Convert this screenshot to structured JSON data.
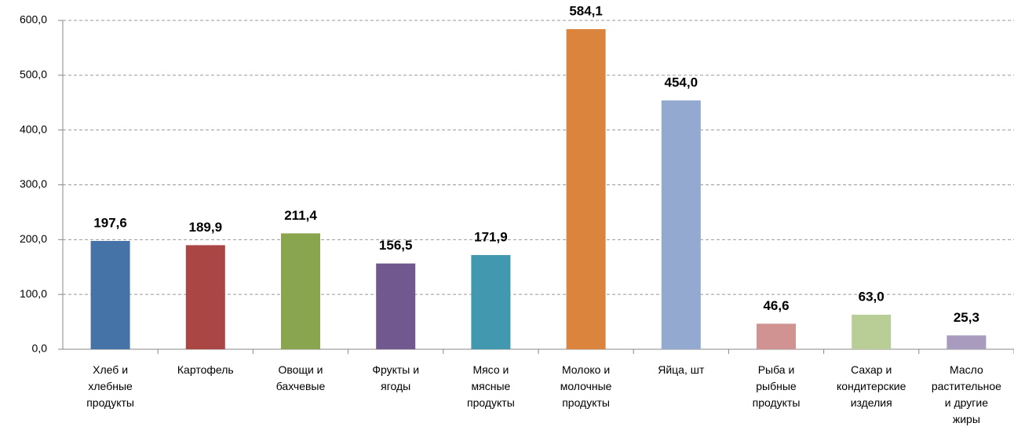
{
  "chart_data": {
    "type": "bar",
    "categories": [
      "Хлеб и хлебные продукты",
      "Картофель",
      "Овощи и бахчевые",
      "Фрукты и ягоды",
      "Мясо и мясные продукты",
      "Молоко и молочные продукты",
      "Яйца, шт",
      "Рыба и рыбные продукты",
      "Сахар и кондитерские изделия",
      "Масло растительное и другие жиры"
    ],
    "values": [
      197.6,
      189.9,
      211.4,
      156.5,
      171.9,
      584.1,
      454.0,
      46.6,
      63.0,
      25.3
    ],
    "value_labels": [
      "197,6",
      "189,9",
      "211,4",
      "156,5",
      "171,9",
      "584,1",
      "454,0",
      "46,6",
      "63,0",
      "25,3"
    ],
    "colors": [
      "#4572a7",
      "#aa4643",
      "#89a54e",
      "#71588f",
      "#4198af",
      "#db843d",
      "#93a9cf",
      "#d19392",
      "#b9cd96",
      "#a99bbd"
    ],
    "ylim": [
      0,
      600
    ],
    "yticks": [
      {
        "value": 0,
        "label": "0,0"
      },
      {
        "value": 100,
        "label": "100,0"
      },
      {
        "value": 200,
        "label": "200,0"
      },
      {
        "value": 300,
        "label": "300,0"
      },
      {
        "value": 400,
        "label": "400,0"
      },
      {
        "value": 500,
        "label": "500,0"
      },
      {
        "value": 600,
        "label": "600,0"
      }
    ],
    "grid": true
  }
}
